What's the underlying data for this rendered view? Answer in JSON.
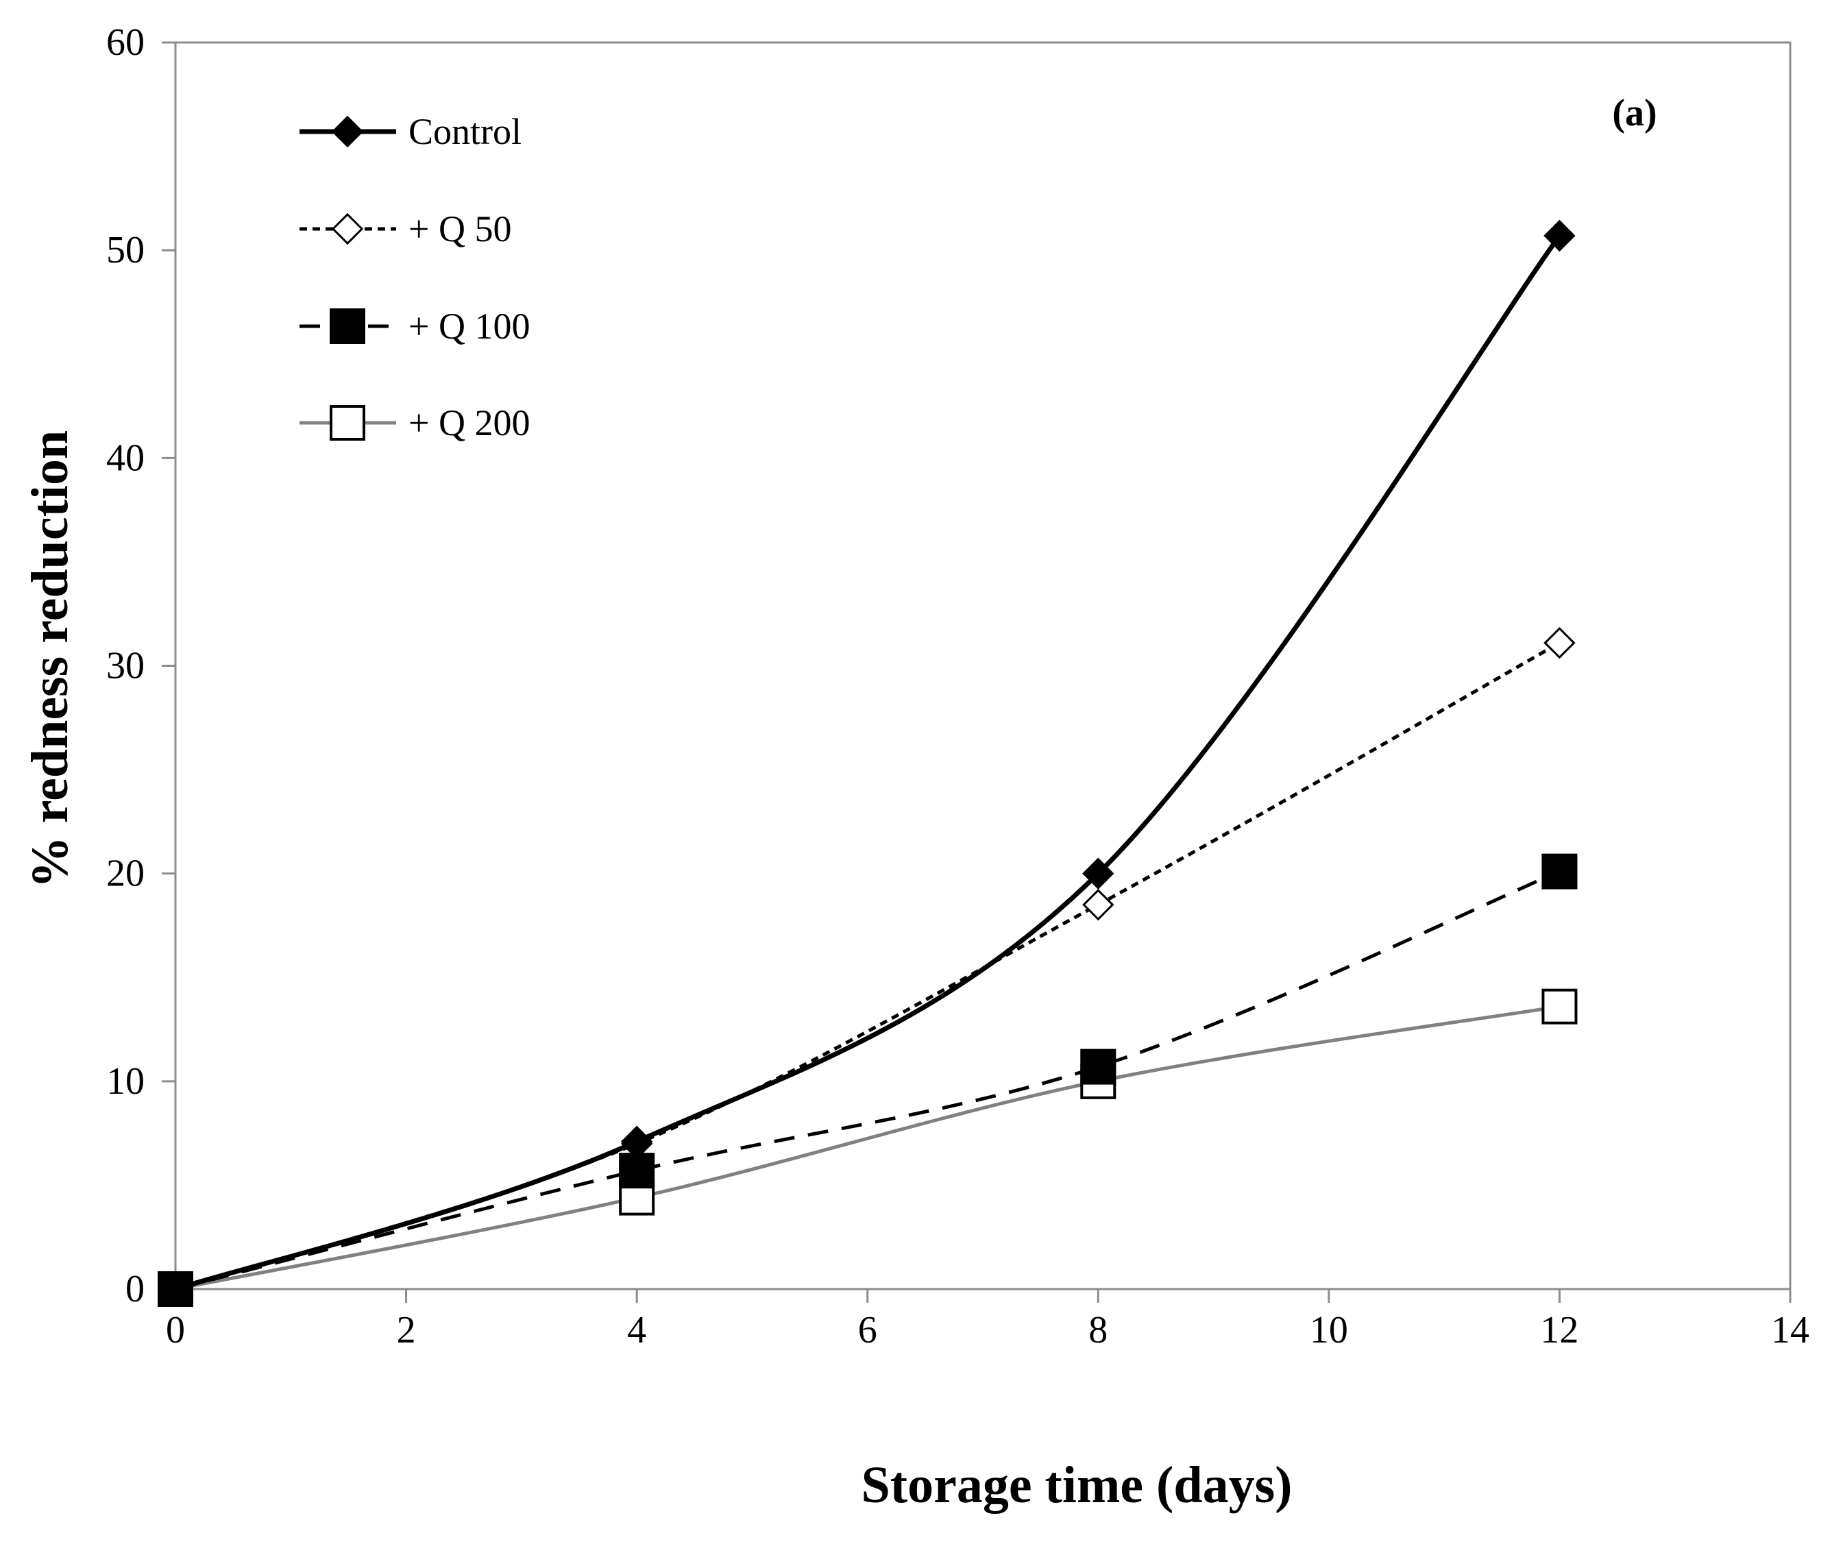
{
  "chart_data": {
    "type": "line",
    "title": "",
    "panel_label": "(a)",
    "xlabel": "Storage time (days)",
    "ylabel": "%  redness reduction",
    "xlim": [
      0,
      14
    ],
    "ylim": [
      0,
      60
    ],
    "x_ticks": [
      0,
      2,
      4,
      6,
      8,
      10,
      12,
      14
    ],
    "y_ticks": [
      0,
      10,
      20,
      30,
      40,
      50,
      60
    ],
    "grid": false,
    "legend_position": "top-left",
    "x": [
      0,
      4,
      8,
      12
    ],
    "series": [
      {
        "name": "Control",
        "values": [
          0,
          7.1,
          20.0,
          50.7
        ],
        "color": "#000000",
        "line_style": "solid",
        "marker": "diamond-filled"
      },
      {
        "name": "+ Q 50",
        "values": [
          0,
          7.0,
          18.5,
          31.1
        ],
        "color": "#000000",
        "line_style": "dotted",
        "marker": "diamond-open"
      },
      {
        "name": "+ Q 100",
        "values": [
          0,
          5.7,
          10.7,
          20.1
        ],
        "color": "#000000",
        "line_style": "dashed",
        "marker": "square-filled"
      },
      {
        "name": "+ Q 200",
        "values": [
          0,
          4.4,
          10.0,
          13.6
        ],
        "color": "#808080",
        "line_style": "solid",
        "marker": "square-open"
      }
    ]
  }
}
